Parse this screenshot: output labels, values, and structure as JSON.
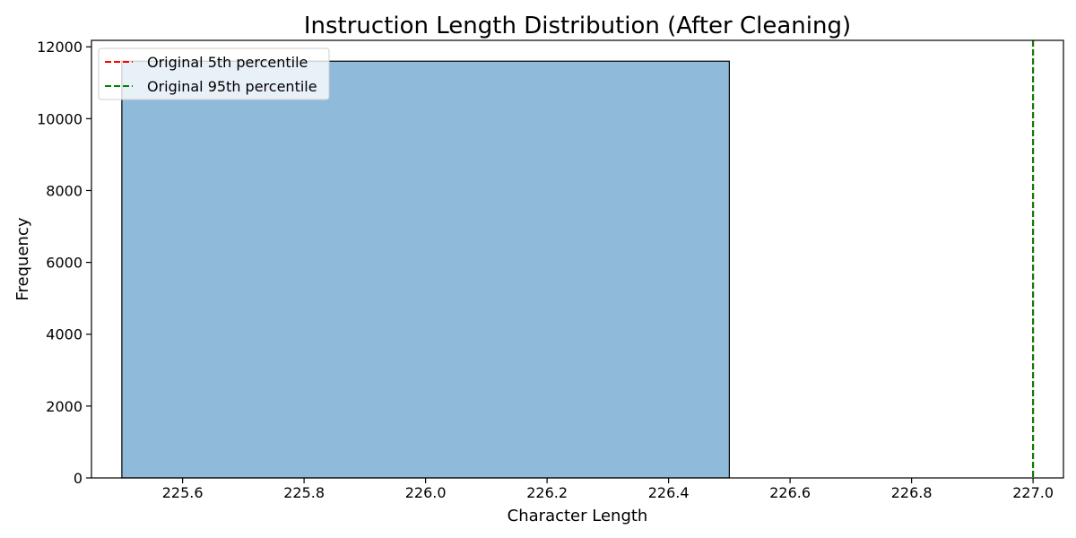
{
  "chart_data": {
    "type": "bar",
    "title": "Instruction Length Distribution (After Cleaning)",
    "xlabel": "Character Length",
    "ylabel": "Frequency",
    "xlim": [
      225.45,
      227.05
    ],
    "ylim": [
      0,
      12180
    ],
    "xticks": [
      225.6,
      225.8,
      226.0,
      226.2,
      226.4,
      226.6,
      226.8,
      227.0
    ],
    "xtick_labels": [
      "225.6",
      "225.8",
      "226.0",
      "226.2",
      "226.4",
      "226.6",
      "226.8",
      "227.0"
    ],
    "yticks": [
      0,
      2000,
      4000,
      6000,
      8000,
      10000,
      12000
    ],
    "ytick_labels": [
      "0",
      "2000",
      "4000",
      "6000",
      "8000",
      "10000",
      "12000"
    ],
    "bins": [
      {
        "x_start": 225.5,
        "x_end": 226.5,
        "count": 11600
      }
    ],
    "bar_color": "#8fbad9",
    "bar_edge_color": "#000000",
    "reference_lines": [
      {
        "name": "Original 5th percentile",
        "x": 227.0,
        "color": "#ff0000",
        "style": "dashed"
      },
      {
        "name": "Original 95th percentile",
        "x": 227.0,
        "color": "#008000",
        "style": "dashed"
      }
    ],
    "legend_position": "top-left",
    "grid": false
  }
}
